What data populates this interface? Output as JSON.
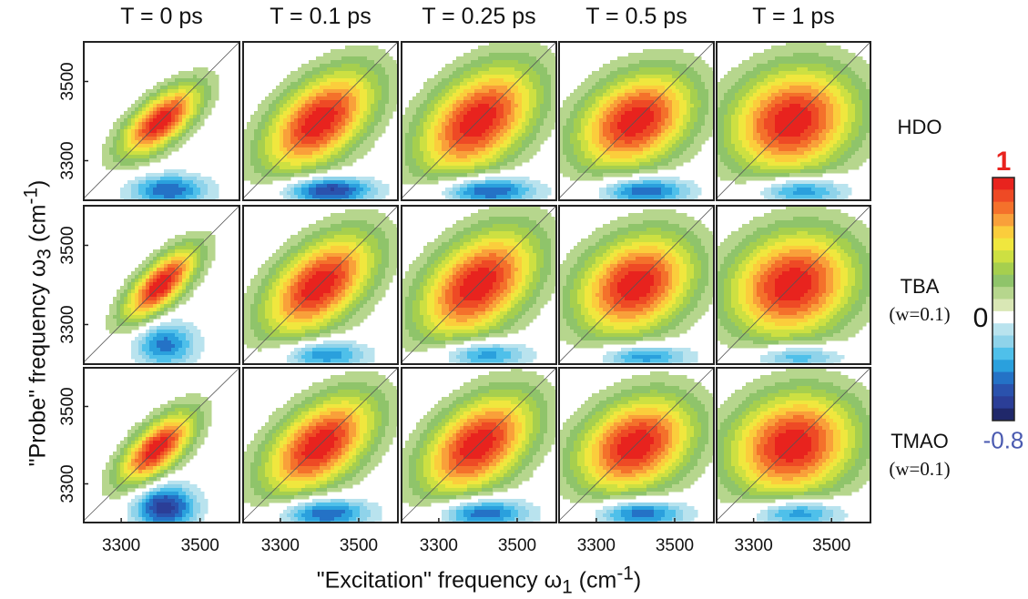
{
  "chart_data": {
    "type": "heatmap",
    "title": "",
    "xlabel": "\"Excitation\" frequency ω",
    "xlabel_sub": "1",
    "xlabel_unit_pre": " (cm",
    "xlabel_unit_sup": "-1",
    "xlabel_unit_post": ")",
    "ylabel": "\"Probe\" frequency ω",
    "ylabel_sub": "3",
    "ylabel_unit_pre": " (cm",
    "ylabel_unit_sup": "-1",
    "ylabel_unit_post": ")",
    "x_ticks": [
      "3300",
      "3500"
    ],
    "y_ticks": [
      "3300",
      "3500"
    ],
    "xlim": [
      3205,
      3600
    ],
    "ylim": [
      3200,
      3600
    ],
    "columns": [
      "T = 0 ps",
      "T = 0.1 ps",
      "T = 0.25 ps",
      "T = 0.5 ps",
      "T = 1 ps"
    ],
    "rows": [
      {
        "name": "HDO",
        "sub": ""
      },
      {
        "name": "TBA",
        "sub": "(w=0.1)"
      },
      {
        "name": "TMAO",
        "sub": "(w=0.1)"
      }
    ],
    "colorbar": {
      "max_label": "1",
      "zero_label": "0",
      "min_label": "-0.8",
      "max": 1,
      "min": -0.8,
      "max_color": "#e8231e",
      "min_color": "#4a5ab0"
    },
    "panels": [
      [
        {
          "pos": {
            "x": 3400,
            "y": 3400,
            "amp": 1.0,
            "su": 85,
            "sv": 38,
            "rot": 40
          },
          "neg": {
            "x": 3420,
            "y": 3225,
            "amp": -0.55,
            "sx": 70,
            "sy": 28
          }
        },
        {
          "pos": {
            "x": 3400,
            "y": 3400,
            "amp": 1.0,
            "su": 115,
            "sv": 65,
            "rot": 40
          },
          "neg": {
            "x": 3420,
            "y": 3225,
            "amp": -0.7,
            "sx": 80,
            "sy": 25
          }
        },
        {
          "pos": {
            "x": 3400,
            "y": 3400,
            "amp": 1.0,
            "su": 120,
            "sv": 75,
            "rot": 40
          },
          "neg": {
            "x": 3420,
            "y": 3225,
            "amp": -0.65,
            "sx": 85,
            "sy": 25
          }
        },
        {
          "pos": {
            "x": 3400,
            "y": 3400,
            "amp": 1.0,
            "su": 110,
            "sv": 75,
            "rot": 30
          },
          "neg": {
            "x": 3420,
            "y": 3225,
            "amp": -0.6,
            "sx": 80,
            "sy": 25
          }
        },
        {
          "pos": {
            "x": 3400,
            "y": 3400,
            "amp": 1.0,
            "su": 115,
            "sv": 90,
            "rot": 20
          },
          "neg": {
            "x": 3420,
            "y": 3225,
            "amp": -0.55,
            "sx": 80,
            "sy": 25
          }
        }
      ],
      [
        {
          "pos": {
            "x": 3400,
            "y": 3400,
            "amp": 1.0,
            "su": 85,
            "sv": 35,
            "rot": 45
          },
          "neg": {
            "x": 3410,
            "y": 3250,
            "amp": -0.5,
            "sx": 55,
            "sy": 40
          }
        },
        {
          "pos": {
            "x": 3400,
            "y": 3400,
            "amp": 1.0,
            "su": 115,
            "sv": 65,
            "rot": 40
          },
          "neg": {
            "x": 3410,
            "y": 3225,
            "amp": -0.5,
            "sx": 75,
            "sy": 25
          }
        },
        {
          "pos": {
            "x": 3400,
            "y": 3400,
            "amp": 1.0,
            "su": 120,
            "sv": 75,
            "rot": 40
          },
          "neg": {
            "x": 3410,
            "y": 3225,
            "amp": -0.5,
            "sx": 80,
            "sy": 25
          }
        },
        {
          "pos": {
            "x": 3400,
            "y": 3400,
            "amp": 1.0,
            "su": 110,
            "sv": 80,
            "rot": 30
          },
          "neg": {
            "x": 3420,
            "y": 3220,
            "amp": -0.5,
            "sx": 80,
            "sy": 22
          }
        },
        {
          "pos": {
            "x": 3400,
            "y": 3400,
            "amp": 1.0,
            "su": 115,
            "sv": 90,
            "rot": 20
          },
          "neg": {
            "x": 3410,
            "y": 3220,
            "amp": -0.45,
            "sx": 80,
            "sy": 22
          }
        }
      ],
      [
        {
          "pos": {
            "x": 3390,
            "y": 3390,
            "amp": 1.0,
            "su": 85,
            "sv": 38,
            "rot": 45
          },
          "neg": {
            "x": 3410,
            "y": 3240,
            "amp": -0.7,
            "sx": 55,
            "sy": 40
          }
        },
        {
          "pos": {
            "x": 3400,
            "y": 3400,
            "amp": 1.0,
            "su": 115,
            "sv": 65,
            "rot": 40
          },
          "neg": {
            "x": 3410,
            "y": 3225,
            "amp": -0.6,
            "sx": 80,
            "sy": 28
          }
        },
        {
          "pos": {
            "x": 3400,
            "y": 3400,
            "amp": 1.0,
            "su": 115,
            "sv": 70,
            "rot": 40
          },
          "neg": {
            "x": 3410,
            "y": 3225,
            "amp": -0.6,
            "sx": 80,
            "sy": 28
          }
        },
        {
          "pos": {
            "x": 3400,
            "y": 3400,
            "amp": 1.0,
            "su": 110,
            "sv": 78,
            "rot": 30
          },
          "neg": {
            "x": 3410,
            "y": 3225,
            "amp": -0.6,
            "sx": 80,
            "sy": 26
          }
        },
        {
          "pos": {
            "x": 3400,
            "y": 3400,
            "amp": 1.0,
            "su": 115,
            "sv": 90,
            "rot": 20
          },
          "neg": {
            "x": 3410,
            "y": 3225,
            "amp": -0.55,
            "sx": 80,
            "sy": 26
          }
        }
      ]
    ],
    "contour_levels": [
      1.0,
      0.9,
      0.8,
      0.7,
      0.6,
      0.5,
      0.4,
      0.3,
      0.2,
      0.1,
      -0.1,
      -0.2,
      -0.3,
      -0.4,
      -0.5,
      -0.6,
      -0.7,
      -0.8
    ],
    "level_colors": {
      "pos": [
        "#e8231e",
        "#ee4a25",
        "#f4712b",
        "#f9a03a",
        "#fbcd3c",
        "#f0e73e",
        "#cde042",
        "#a6cf4e",
        "#8fc46a",
        "#b6d68d",
        "#d9e7b5"
      ],
      "neg": [
        "#b9e3ee",
        "#8fd3ea",
        "#4fc0ea",
        "#2aa0dd",
        "#2472c6",
        "#2a52ad",
        "#2b3e97",
        "#20286a"
      ]
    }
  }
}
